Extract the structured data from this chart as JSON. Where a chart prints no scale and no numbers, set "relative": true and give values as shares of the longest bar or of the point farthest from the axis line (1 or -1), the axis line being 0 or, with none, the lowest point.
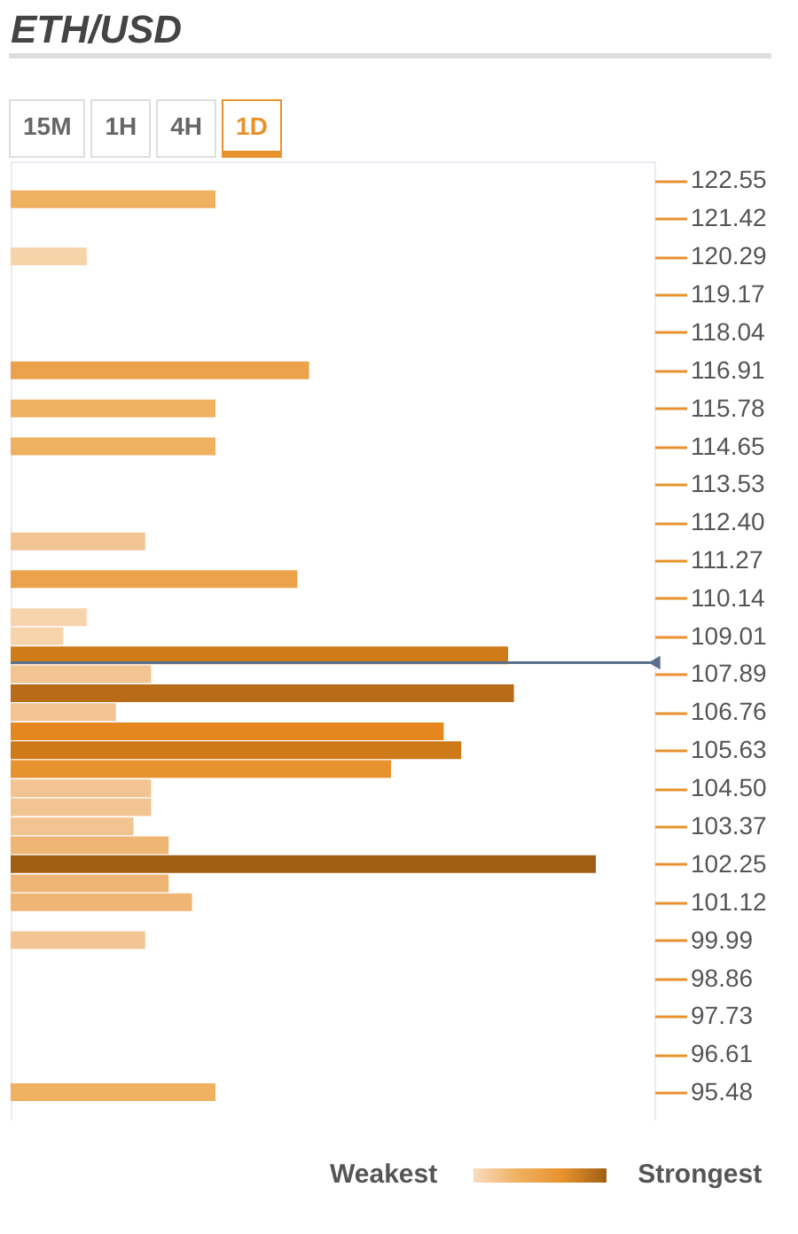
{
  "chart_data": {
    "type": "bar",
    "title": "ETH/USD",
    "orientation": "horizontal",
    "relative": true,
    "x": [
      121.99,
      120.29,
      116.91,
      115.78,
      114.65,
      111.83,
      110.71,
      109.58,
      109.01,
      108.45,
      107.89,
      107.32,
      106.76,
      106.19,
      105.63,
      105.07,
      104.5,
      103.94,
      103.37,
      102.81,
      102.25,
      101.68,
      101.12,
      99.99,
      95.48
    ],
    "values": [
      0.35,
      0.13,
      0.51,
      0.35,
      0.35,
      0.23,
      0.49,
      0.13,
      0.09,
      0.85,
      0.24,
      0.86,
      0.18,
      0.74,
      0.77,
      0.65,
      0.24,
      0.24,
      0.21,
      0.27,
      1,
      0.27,
      0.31,
      0.23,
      0.35
    ],
    "colors": [
      "#efb060",
      "#f7d3aa",
      "#eba24a",
      "#efb060",
      "#efb060",
      "#f3c595",
      "#eba24a",
      "#f8d4ad",
      "#f8d4ad",
      "#d07a18",
      "#f2c491",
      "#b96c18",
      "#f2c491",
      "#e5871e",
      "#cf7a18",
      "#e8922e",
      "#f2c491",
      "#f2c491",
      "#f2c491",
      "#efb575",
      "#a05f15",
      "#efb575",
      "#efb575",
      "#f3c595",
      "#efb060"
    ],
    "ylim": [
      94.9,
      122.85
    ],
    "yticks": [
      122.55,
      121.42,
      120.29,
      119.17,
      118.04,
      116.91,
      115.78,
      114.65,
      113.53,
      {
        "value": 112.4,
        "label": "112.40"
      },
      111.27,
      110.14,
      109.01,
      107.89,
      106.76,
      105.63,
      {
        "value": 104.5,
        "label": "104.50"
      },
      103.37,
      102.25,
      101.12,
      99.99,
      98.86,
      97.73,
      96.61,
      95.48
    ],
    "ref_lines": [
      {
        "axis": "y",
        "value": 108.23,
        "color": "#5a6f8a"
      }
    ],
    "annotations": [
      "15M",
      "1H",
      "4H",
      "1D",
      "Weakest",
      "Strongest"
    ]
  }
}
